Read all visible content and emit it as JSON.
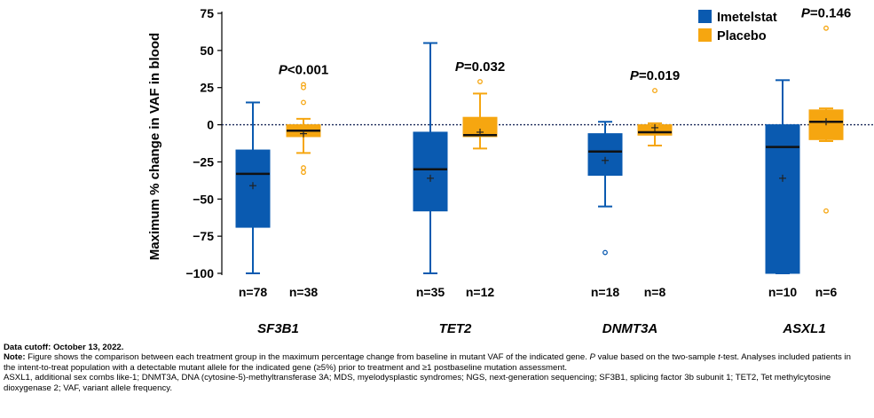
{
  "chart_data": {
    "type": "box",
    "ylabel": "Maximum % change in VAF in blood",
    "ylim": [
      -100,
      75
    ],
    "yticks": [
      -100,
      -75,
      -50,
      -25,
      0,
      25,
      50,
      75
    ],
    "reference_line": 0,
    "legend": [
      {
        "name": "Imetelstat",
        "color": "#0A5AB0"
      },
      {
        "name": "Placebo",
        "color": "#F6A610"
      }
    ],
    "groups": [
      {
        "gene": "SF3B1",
        "p_label": "P",
        "p_value": "<0.001",
        "boxes": [
          {
            "series": "Imetelstat",
            "n_label": "n=78",
            "whisker_low": -100,
            "q1": -69,
            "median": -33,
            "q3": -17,
            "whisker_high": 15,
            "mean": -41,
            "outliers": []
          },
          {
            "series": "Placebo",
            "n_label": "n=38",
            "whisker_low": -19,
            "q1": -8,
            "median": -4,
            "q3": 0,
            "whisker_high": 4,
            "mean": -6,
            "outliers": [
              27,
              25,
              15,
              -29,
              -32
            ]
          }
        ]
      },
      {
        "gene": "TET2",
        "p_label": "P",
        "p_value": "=0.032",
        "boxes": [
          {
            "series": "Imetelstat",
            "n_label": "n=35",
            "whisker_low": -100,
            "q1": -58,
            "median": -30,
            "q3": -5,
            "whisker_high": 55,
            "mean": -36,
            "outliers": []
          },
          {
            "series": "Placebo",
            "n_label": "n=12",
            "whisker_low": -16,
            "q1": -8,
            "median": -7,
            "q3": 5,
            "whisker_high": 21,
            "mean": -5,
            "outliers": [
              29
            ]
          }
        ]
      },
      {
        "gene": "DNMT3A",
        "p_label": "P",
        "p_value": "=0.019",
        "boxes": [
          {
            "series": "Imetelstat",
            "n_label": "n=18",
            "whisker_low": -55,
            "q1": -34,
            "median": -18,
            "q3": -6,
            "whisker_high": 2,
            "mean": -24,
            "outliers": [
              -86
            ]
          },
          {
            "series": "Placebo",
            "n_label": "n=8",
            "whisker_low": -14,
            "q1": -7,
            "median": -5,
            "q3": 0,
            "whisker_high": 1,
            "mean": -2,
            "outliers": [
              23
            ]
          }
        ]
      },
      {
        "gene": "ASXL1",
        "p_label": "P",
        "p_value": "=0.146",
        "boxes": [
          {
            "series": "Imetelstat",
            "n_label": "n=10",
            "whisker_low": -100,
            "q1": -100,
            "median": -15,
            "q3": 0,
            "whisker_high": 30,
            "mean": -36,
            "outliers": []
          },
          {
            "series": "Placebo",
            "n_label": "n=6",
            "whisker_low": -11,
            "q1": -10,
            "median": 2,
            "q3": 10,
            "whisker_high": 11,
            "mean": 2,
            "outliers": [
              65,
              -58
            ]
          }
        ]
      }
    ]
  },
  "footnotes": {
    "cutoff": "Data cutoff: October 13, 2022.",
    "note_label": "Note:",
    "note_1": " Figure shows the comparison between each treatment group in the maximum percentage change from baseline in mutant VAF of the indicated gene. ",
    "note_p": "P",
    "note_2": " value based on the two-sample ",
    "note_t": "t",
    "note_3": "-test. Analyses included patients in the intent-to-treat population with a detectable mutant allele for the indicated gene (≥5%) prior to treatment and ≥1 postbaseline mutation assessment.",
    "abbreviations": "ASXL1, additional sex combs like-1; DNMT3A, DNA (cytosine-5)-methyltransferase 3A; MDS, myelodysplastic syndromes; NGS, next-generation sequencing; SF3B1, splicing factor 3b subunit 1; TET2, Tet methylcytosine dioxygenase 2; VAF, variant allele frequency."
  }
}
